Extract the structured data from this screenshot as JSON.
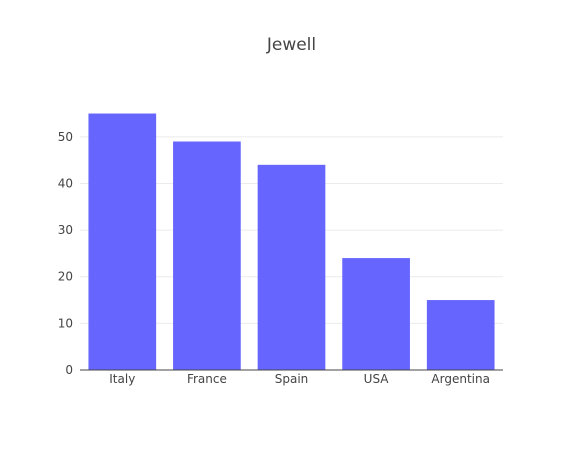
{
  "chart_data": {
    "type": "bar",
    "title": "Jewell",
    "categories": [
      "Italy",
      "France",
      "Spain",
      "USA",
      "Argentina"
    ],
    "values": [
      55,
      49,
      44,
      24,
      15
    ],
    "xlabel": "",
    "ylabel": "",
    "ylim": [
      0,
      57.9
    ],
    "yticks": [
      0,
      10,
      20,
      30,
      40,
      50
    ],
    "grid": true,
    "legend": "none",
    "colors": {
      "bar": "#6666ff",
      "grid": "#ebebeb",
      "axis": "#444444",
      "text": "#444444"
    }
  }
}
